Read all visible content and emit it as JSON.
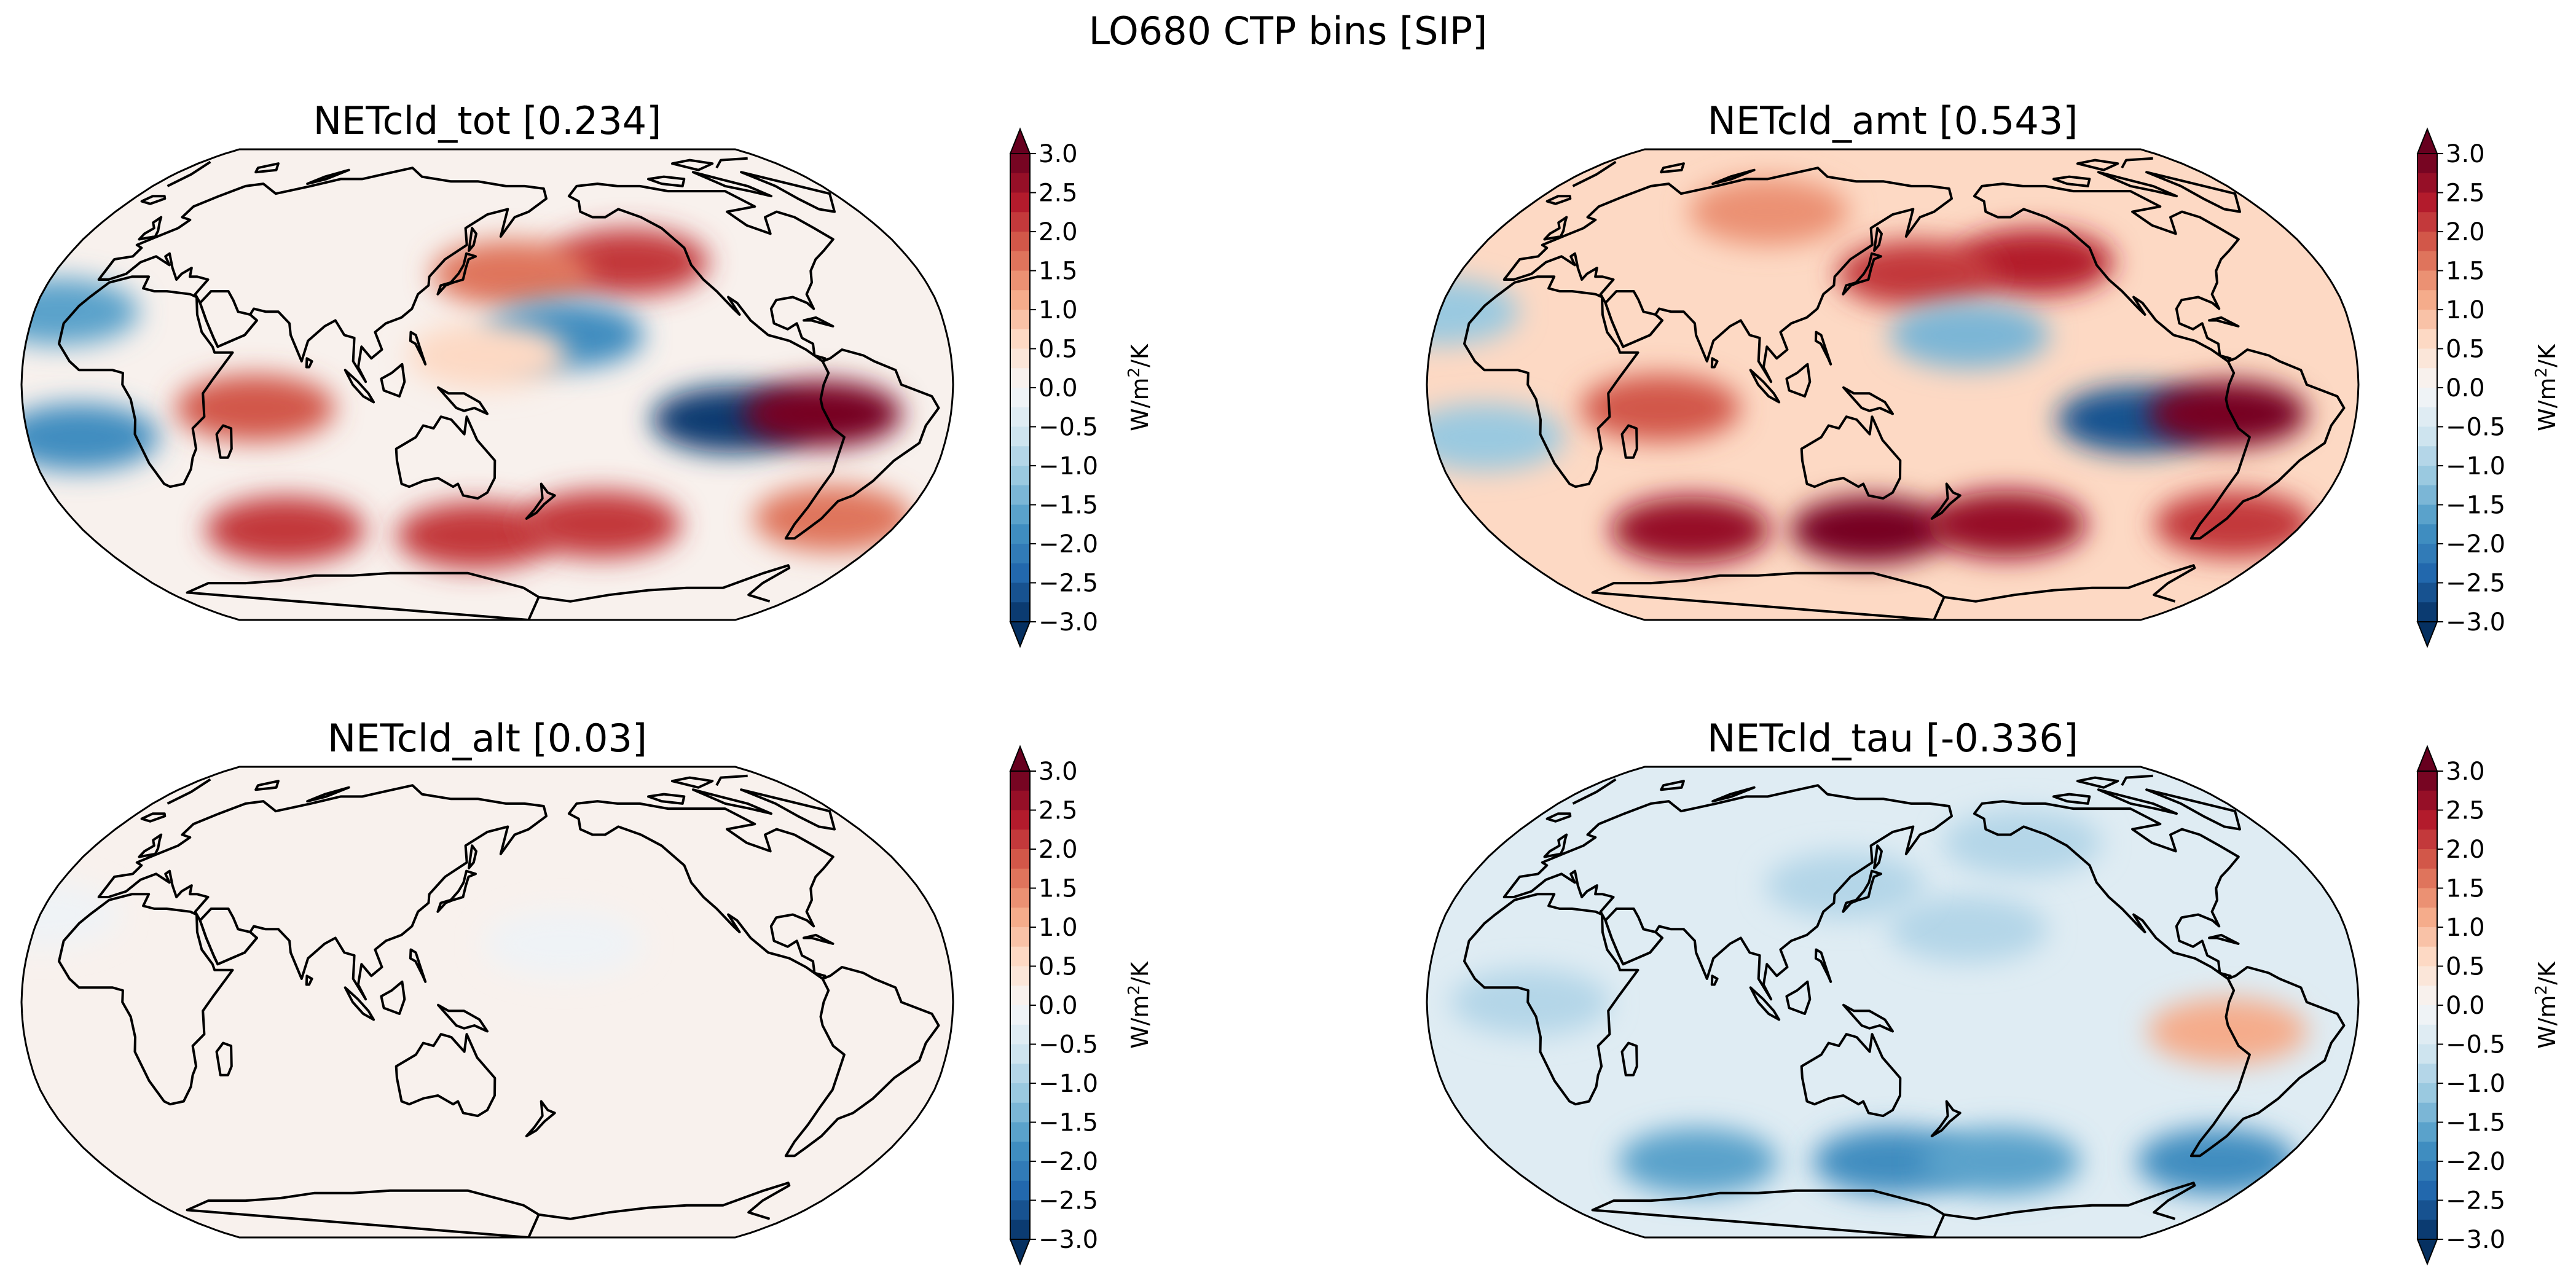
{
  "suptitle": "LO680 CTP bins [SIP]",
  "colormap": {
    "name": "RdBu_r",
    "stops": [
      "#053061",
      "#2166ac",
      "#4393c3",
      "#92c5de",
      "#d1e5f0",
      "#f7f7f7",
      "#fddbc7",
      "#f4a582",
      "#d6604d",
      "#b2182b",
      "#67001f"
    ]
  },
  "colors": {
    "land_outline": "#000000",
    "background": "#ffffff"
  },
  "chart_data": [
    {
      "type": "heatmap",
      "subtype": "robinson-map-filled-contour",
      "title": "NETcld_tot [0.234]",
      "field": "NETcld_tot",
      "global_mean": 0.234,
      "colorbar": {
        "label": "W/m²/K",
        "label_base": "W/m",
        "label_sup": "2",
        "label_tail": "/K",
        "vmin": -3.0,
        "vmax": 3.0,
        "extend": "both",
        "ticks": [
          "3.0",
          "2.5",
          "2.0",
          "1.5",
          "1.0",
          "0.5",
          "0.0",
          "−0.5",
          "−1.0",
          "−1.5",
          "−2.0",
          "−2.5",
          "−3.0"
        ]
      },
      "background_value": 0.1,
      "features": [
        {
          "lon": -150,
          "lat": 42,
          "value": 2.2
        },
        {
          "lon": 160,
          "lat": 38,
          "value": 1.6
        },
        {
          "lon": 180,
          "lat": 17,
          "value": -1.9
        },
        {
          "lon": -115,
          "lat": -12,
          "value": -3.0
        },
        {
          "lon": -80,
          "lat": -10,
          "value": 3.0
        },
        {
          "lon": -20,
          "lat": 25,
          "value": -1.6
        },
        {
          "lon": -10,
          "lat": -18,
          "value": -1.8
        },
        {
          "lon": 60,
          "lat": -8,
          "value": 1.8
        },
        {
          "lon": 145,
          "lat": -52,
          "value": 2.2
        },
        {
          "lon": 60,
          "lat": -50,
          "value": 2.0
        },
        {
          "lon": -160,
          "lat": -48,
          "value": 2.0
        },
        {
          "lon": -60,
          "lat": -46,
          "value": 1.5
        },
        {
          "lon": 150,
          "lat": 10,
          "value": 0.5
        }
      ]
    },
    {
      "type": "heatmap",
      "subtype": "robinson-map-filled-contour",
      "title": "NETcld_amt [0.543]",
      "field": "NETcld_amt",
      "global_mean": 0.543,
      "colorbar": {
        "label": "W/m²/K",
        "label_base": "W/m",
        "label_sup": "2",
        "label_tail": "/K",
        "vmin": -3.0,
        "vmax": 3.0,
        "extend": "both",
        "ticks": [
          "3.0",
          "2.5",
          "2.0",
          "1.5",
          "1.0",
          "0.5",
          "0.0",
          "−0.5",
          "−1.0",
          "−1.5",
          "−2.0",
          "−2.5",
          "−3.0"
        ]
      },
      "background_value": 0.6,
      "features": [
        {
          "lon": -150,
          "lat": 42,
          "value": 2.4
        },
        {
          "lon": 160,
          "lat": 38,
          "value": 2.0
        },
        {
          "lon": 180,
          "lat": 17,
          "value": -1.4
        },
        {
          "lon": -115,
          "lat": -12,
          "value": -2.6
        },
        {
          "lon": -80,
          "lat": -10,
          "value": 3.0
        },
        {
          "lon": -30,
          "lat": 25,
          "value": -1.2
        },
        {
          "lon": -10,
          "lat": -18,
          "value": -1.2
        },
        {
          "lon": 60,
          "lat": -8,
          "value": 1.8
        },
        {
          "lon": 140,
          "lat": -50,
          "value": 2.8
        },
        {
          "lon": 60,
          "lat": -50,
          "value": 2.6
        },
        {
          "lon": -160,
          "lat": -48,
          "value": 2.6
        },
        {
          "lon": -60,
          "lat": -48,
          "value": 2.2
        },
        {
          "lon": 90,
          "lat": 60,
          "value": 1.4
        }
      ]
    },
    {
      "type": "heatmap",
      "subtype": "robinson-map-filled-contour",
      "title": "NETcld_alt [0.03]",
      "field": "NETcld_alt",
      "global_mean": 0.03,
      "colorbar": {
        "label": "W/m²/K",
        "label_base": "W/m",
        "label_sup": "2",
        "label_tail": "/K",
        "vmin": -3.0,
        "vmax": 3.0,
        "extend": "both",
        "ticks": [
          "3.0",
          "2.5",
          "2.0",
          "1.5",
          "1.0",
          "0.5",
          "0.0",
          "−0.5",
          "−1.0",
          "−1.5",
          "−2.0",
          "−2.5",
          "−3.0"
        ]
      },
      "background_value": 0.05,
      "features": [
        {
          "lon": 180,
          "lat": 20,
          "value": -0.1
        },
        {
          "lon": -30,
          "lat": 30,
          "value": -0.1
        }
      ]
    },
    {
      "type": "heatmap",
      "subtype": "robinson-map-filled-contour",
      "title": "NETcld_tau [-0.336]",
      "field": "NETcld_tau",
      "global_mean": -0.336,
      "colorbar": {
        "label": "W/m²/K",
        "label_base": "W/m",
        "label_sup": "2",
        "label_tail": "/K",
        "vmin": -3.0,
        "vmax": 3.0,
        "extend": "both",
        "ticks": [
          "3.0",
          "2.5",
          "2.0",
          "1.5",
          "1.0",
          "0.5",
          "0.0",
          "−0.5",
          "−1.0",
          "−1.5",
          "−2.0",
          "−2.5",
          "−3.0"
        ]
      },
      "background_value": -0.4,
      "features": [
        {
          "lon": 150,
          "lat": -55,
          "value": -1.8
        },
        {
          "lon": 60,
          "lat": -55,
          "value": -1.6
        },
        {
          "lon": -160,
          "lat": -55,
          "value": -1.6
        },
        {
          "lon": -60,
          "lat": -55,
          "value": -1.8
        },
        {
          "lon": -80,
          "lat": -10,
          "value": 1.0
        },
        {
          "lon": 180,
          "lat": 25,
          "value": -0.8
        },
        {
          "lon": -150,
          "lat": 55,
          "value": -0.9
        },
        {
          "lon": 10,
          "lat": 0,
          "value": -0.9
        },
        {
          "lon": 130,
          "lat": 40,
          "value": -1.0
        }
      ]
    }
  ]
}
